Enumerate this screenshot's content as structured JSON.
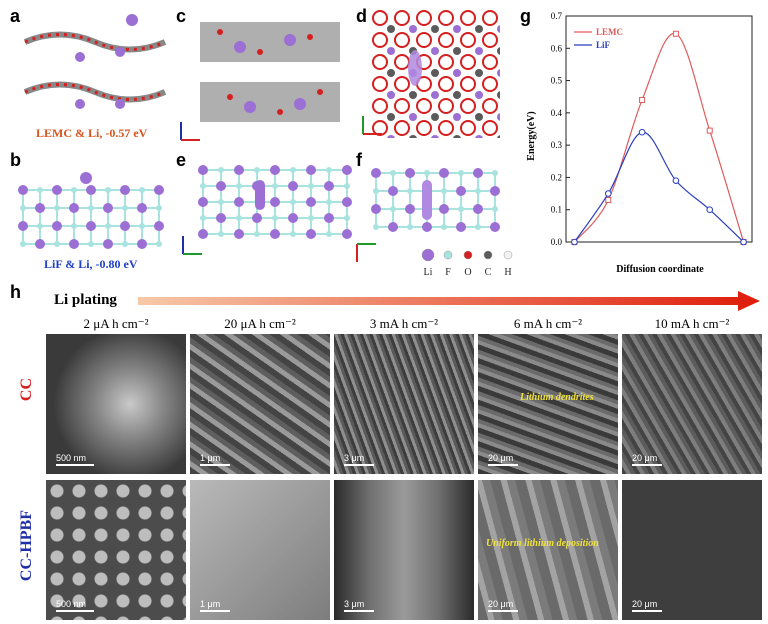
{
  "panels": {
    "a": {
      "label": "a",
      "caption": "LEMC & Li, -0.57 eV"
    },
    "b": {
      "label": "b",
      "caption": "LiF & Li, -0.80 eV"
    },
    "c": {
      "label": "c"
    },
    "d": {
      "label": "d"
    },
    "e": {
      "label": "e"
    },
    "f": {
      "label": "f"
    },
    "g": {
      "label": "g"
    },
    "h": {
      "label": "h"
    }
  },
  "atom_legend": [
    "Li",
    "F",
    "O",
    "C",
    "H"
  ],
  "atom_colors": {
    "Li": "#9b6fd3",
    "F": "#a9e3e0",
    "O": "#d61f1f",
    "C": "#5b5b5b",
    "H": "#f2f2f2"
  },
  "chart_data": {
    "type": "line",
    "xlabel": "Diffusion coordinate",
    "ylabel": "Energy(eV)",
    "ylim": [
      0,
      0.7
    ],
    "yticks": [
      "0.0",
      "0.1",
      "0.2",
      "0.3",
      "0.4",
      "0.5",
      "0.6",
      "0.7"
    ],
    "grid": false,
    "legend_position": "top-right",
    "series": [
      {
        "name": "LEMC",
        "color": "#e05a5a",
        "x": [
          0,
          1,
          2,
          3,
          4,
          5
        ],
        "values": [
          0.0,
          0.13,
          0.44,
          0.645,
          0.345,
          0.0
        ]
      },
      {
        "name": "LiF",
        "color": "#2a3fbf",
        "x": [
          0,
          1,
          2,
          3,
          4,
          5
        ],
        "values": [
          0.0,
          0.15,
          0.34,
          0.19,
          0.1,
          0.0
        ]
      }
    ]
  },
  "li_plating": {
    "label": "Li plating"
  },
  "columns": [
    "2 μA h cm⁻²",
    "20 μA h cm⁻²",
    "3 mA h cm⁻²",
    "6 mA h cm⁻²",
    "10 mA h cm⁻²"
  ],
  "rows": [
    {
      "label": "CC",
      "color": "#d62020",
      "scalebars": [
        "500 nm",
        "1 μm",
        "3 μm",
        "20 μm",
        "20 μm"
      ]
    },
    {
      "label": "CC-HPBF",
      "color": "#1f2fa8",
      "scalebars": [
        "500 nm",
        "1 μm",
        "3 μm",
        "20 μm",
        "20 μm"
      ]
    }
  ],
  "annotations": {
    "cc_6": "Lithium dendrites",
    "hpbf_6": "Uniform lithium deposition"
  }
}
